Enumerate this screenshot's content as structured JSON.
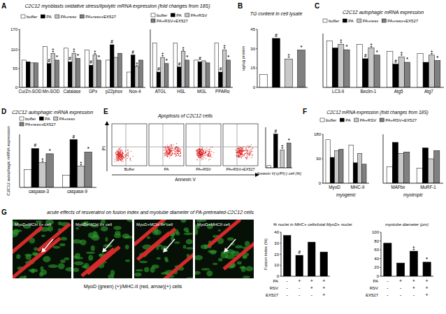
{
  "chart_data": [
    {
      "type": "bar",
      "panel": "A",
      "title": "C2C12 myoblasts oxidative stress/lipolytic mRNA expression (fold changes from 18S)",
      "legend": "top",
      "categories": [
        "Cu/Zn-SOD",
        "Mn-SOD",
        "Catalase",
        "GPx",
        "p22phox",
        "Nox-4"
      ],
      "series": [
        {
          "name": "buffer",
          "color": "#ffffff",
          "values": [
            80,
            120,
            115,
            110,
            80,
            45
          ]
        },
        {
          "name": "PA",
          "color": "#000000",
          "values": [
            75,
            70,
            75,
            65,
            125,
            95
          ]
        },
        {
          "name": "PA+resv",
          "color": "#c8c8c8",
          "values": [
            72,
            100,
            100,
            95,
            88,
            60
          ]
        },
        {
          "name": "PA+resv+EX527",
          "color": "#808080",
          "values": [
            72,
            80,
            85,
            80,
            100,
            80
          ]
        }
      ],
      "ylim": [
        0,
        170
      ],
      "yticks": [
        0,
        55,
        110,
        170
      ],
      "annotations": [
        {
          "series": 1,
          "index": 1,
          "text": "#"
        },
        {
          "series": 2,
          "index": 1,
          "text": "‡"
        },
        {
          "series": 3,
          "index": 1,
          "text": "*"
        },
        {
          "series": 1,
          "index": 2,
          "text": "#"
        },
        {
          "series": 2,
          "index": 2,
          "text": "‡"
        },
        {
          "series": 3,
          "index": 2,
          "text": "*"
        },
        {
          "series": 1,
          "index": 3,
          "text": "#"
        },
        {
          "series": 2,
          "index": 3,
          "text": "‡"
        },
        {
          "series": 3,
          "index": 3,
          "text": "*"
        },
        {
          "series": 1,
          "index": 4,
          "text": "#"
        },
        {
          "series": 1,
          "index": 5,
          "text": "#"
        },
        {
          "series": 2,
          "index": 5,
          "text": "‡"
        }
      ]
    },
    {
      "type": "bar",
      "legend": "top",
      "tick_labels": false,
      "categories": [
        "ATGL",
        "HSL",
        "MGL",
        "PPARα"
      ],
      "series": [
        {
          "name": "buffer",
          "color": "#ffffff",
          "values": [
            130,
            130,
            80,
            130
          ]
        },
        {
          "name": "PA",
          "color": "#000000",
          "values": [
            45,
            60,
            75,
            45
          ]
        },
        {
          "name": "PA+RSV",
          "color": "#c8c8c8",
          "values": [
            88,
            105,
            78,
            110
          ]
        },
        {
          "name": "PA+RSV+EX527",
          "color": "#808080",
          "values": [
            70,
            80,
            72,
            80
          ]
        }
      ],
      "ylim": [
        0,
        170
      ],
      "annotations": [
        {
          "series": 1,
          "index": 0,
          "text": "#"
        },
        {
          "series": 2,
          "index": 0,
          "text": "‡"
        },
        {
          "series": 3,
          "index": 0,
          "text": "*"
        },
        {
          "series": 1,
          "index": 1,
          "text": "#"
        },
        {
          "series": 2,
          "index": 1,
          "text": "‡"
        },
        {
          "series": 3,
          "index": 1,
          "text": "*"
        },
        {
          "series": 1,
          "index": 2,
          "text": "#"
        },
        {
          "series": 1,
          "index": 3,
          "text": "#"
        },
        {
          "series": 2,
          "index": 3,
          "text": "‡"
        },
        {
          "series": 3,
          "index": 3,
          "text": "*"
        }
      ]
    },
    {
      "type": "bar",
      "panel": "B",
      "title": "TG content in cell lysate",
      "ylabel": "ug/ug protein",
      "categories": [
        null,
        null,
        null,
        null
      ],
      "values": [
        10,
        38,
        22,
        29
      ],
      "colors": [
        "#ffffff",
        "#000000",
        "#c8c8c8",
        "#808080"
      ],
      "ylim": [
        0,
        45
      ],
      "yticks": [
        0,
        15,
        30,
        45
      ],
      "annotations": [
        {
          "index": 1,
          "text": "#"
        },
        {
          "index": 2,
          "text": "‡"
        },
        {
          "index": 3,
          "text": "*"
        }
      ]
    },
    {
      "type": "bar",
      "panel": "C",
      "title": "C2C12 autophagic mRNA expression",
      "legend": "top",
      "tick_labels": false,
      "categories": [
        "LC3-II",
        "Beclin-1",
        "Atg5",
        "Atg7"
      ],
      "series": [
        {
          "name": "buffer",
          "color": "#ffffff",
          "values": [
            130,
            120,
            100,
            95
          ]
        },
        {
          "name": "PA",
          "color": "#000000",
          "values": [
            110,
            80,
            65,
            70
          ]
        },
        {
          "name": "PA+resv",
          "color": "#c8c8c8",
          "values": [
            120,
            110,
            85,
            90
          ]
        },
        {
          "name": "PA+resv+EX527",
          "color": "#808080",
          "values": [
            105,
            90,
            70,
            75
          ]
        }
      ],
      "ylim": [
        0,
        150
      ],
      "annotations": [
        {
          "series": 2,
          "index": 0,
          "text": "‡"
        },
        {
          "series": 3,
          "index": 0,
          "text": "*"
        },
        {
          "series": 1,
          "index": 1,
          "text": "#"
        },
        {
          "series": 2,
          "index": 1,
          "text": "‡"
        },
        {
          "series": 3,
          "index": 1,
          "text": "*"
        },
        {
          "series": 1,
          "index": 2,
          "text": "#"
        },
        {
          "series": 2,
          "index": 2,
          "text": "‡"
        },
        {
          "series": 3,
          "index": 2,
          "text": "*"
        },
        {
          "series": 2,
          "index": 3,
          "text": "‡"
        },
        {
          "series": 3,
          "index": 3,
          "text": "*"
        }
      ]
    },
    {
      "type": "bar",
      "panel": "D",
      "title": "C2C12 autophagic mRNA expression",
      "ylabel": "C2C12 autophagic mRNA expression",
      "legend": "top",
      "tick_labels": false,
      "categories": [
        "caspase-3",
        "caspase-9"
      ],
      "series": [
        {
          "name": "buffer",
          "color": "#ffffff",
          "values": [
            50,
            35
          ]
        },
        {
          "name": "PA",
          "color": "#000000",
          "values": [
            110,
            135
          ]
        },
        {
          "name": "PA+resv",
          "color": "#c8c8c8",
          "values": [
            70,
            60
          ]
        },
        {
          "name": "PA+resv+EX527",
          "color": "#808080",
          "values": [
            95,
            100
          ]
        }
      ],
      "ylim": [
        0,
        150
      ],
      "annotations": [
        {
          "series": 1,
          "index": 0,
          "text": "#"
        },
        {
          "series": 2,
          "index": 0,
          "text": "‡"
        },
        {
          "series": 3,
          "index": 0,
          "text": "*"
        },
        {
          "series": 1,
          "index": 1,
          "text": "#"
        },
        {
          "series": 2,
          "index": 1,
          "text": "‡"
        },
        {
          "series": 3,
          "index": 1,
          "text": "*"
        }
      ]
    },
    {
      "type": "bar",
      "xlabel": "Annexin V(+)/PI(-) cell (%)",
      "tick_labels": false,
      "categories": [
        null,
        null,
        null,
        null
      ],
      "values": [
        5,
        75,
        40,
        55
      ],
      "colors": [
        "#ffffff",
        "#000000",
        "#c8c8c8",
        "#808080"
      ],
      "ylim": [
        0,
        90
      ],
      "annotations": [
        {
          "index": 1,
          "text": "#"
        },
        {
          "index": 2,
          "text": "‡"
        },
        {
          "index": 3,
          "text": "*"
        }
      ]
    },
    {
      "type": "bar",
      "panel": "F",
      "title": "C2C12 mRNA expression (fold changes from 18S)",
      "xlabel": "myogenic",
      "legend": "top",
      "categories": [
        "MyoD",
        "MHC-II"
      ],
      "series": [
        {
          "name": "buffer",
          "color": "#ffffff",
          "values": [
            160,
            140
          ]
        },
        {
          "name": "PA",
          "color": "#000000",
          "values": [
            95,
            75
          ]
        },
        {
          "name": "PA+RSV",
          "color": "#c8c8c8",
          "values": [
            120,
            110
          ]
        },
        {
          "name": "PA+RSV+EX527",
          "color": "#808080",
          "values": [
            125,
            70
          ]
        }
      ],
      "ylim": [
        0,
        180
      ],
      "yticks": [
        0,
        90,
        180
      ]
    },
    {
      "type": "bar",
      "xlabel": "myotropic",
      "tick_labels": false,
      "categories": [
        "MAFbx",
        "MuRF-1"
      ],
      "series": [
        {
          "color": "#ffffff",
          "values": [
            60,
            55
          ]
        },
        {
          "color": "#000000",
          "values": [
            150,
            130
          ]
        },
        {
          "color": "#c8c8c8",
          "values": [
            110,
            90
          ]
        },
        {
          "color": "#808080",
          "values": [
            115,
            120
          ]
        }
      ],
      "ylim": [
        0,
        180
      ]
    },
    {
      "type": "bar",
      "title": "% nuclei in MHC+ cells/total MyoD+ nuclei",
      "ylabel": "Fusion index (%)",
      "categories": [
        null,
        null,
        null,
        null
      ],
      "values": [
        37,
        19,
        31,
        22
      ],
      "colors": [
        "#000000",
        "#000000",
        "#000000",
        "#000000"
      ],
      "ylim": [
        0,
        40
      ],
      "yticks": [
        0,
        10,
        20,
        30,
        40
      ],
      "conditions": [
        {
          "label": "PA",
          "signs": [
            "-",
            "+",
            "+",
            "+"
          ]
        },
        {
          "label": "RSV",
          "signs": [
            "-",
            "-",
            "+",
            "+"
          ]
        },
        {
          "label": "EX527",
          "signs": [
            "-",
            "-",
            "-",
            "+"
          ]
        }
      ],
      "annotations": [
        {
          "index": 1,
          "text": "#"
        }
      ]
    },
    {
      "type": "bar",
      "title": "myotube diameter (μm)",
      "categories": [
        null,
        null,
        null,
        null
      ],
      "values": [
        75,
        30,
        57,
        32
      ],
      "colors": [
        "#000000",
        "#000000",
        "#000000",
        "#000000"
      ],
      "ylim": [
        0,
        100
      ],
      "yticks": [
        0,
        20,
        40,
        60,
        80,
        100
      ],
      "conditions": [
        {
          "label": "PA",
          "signs": [
            "-",
            "+",
            "+",
            "+"
          ]
        },
        {
          "label": "RSV",
          "signs": [
            "-",
            "-",
            "+",
            "+"
          ]
        },
        {
          "label": "EX527",
          "signs": [
            "-",
            "-",
            "-",
            "+"
          ]
        }
      ],
      "annotations": [
        {
          "index": 2,
          "text": "‡"
        },
        {
          "index": 3,
          "text": "*"
        }
      ]
    }
  ],
  "flow": {
    "panel": "E",
    "title": "Apoptosis of C2C12 cells",
    "xlabel": "Annexin V",
    "ylabel": "PI",
    "samples": [
      "Buffer",
      "PA",
      "PA+RSV",
      "PA+RSV+EX527"
    ]
  },
  "micrographs": {
    "panel": "G",
    "title": "acute effects of resveratrol on fusion index and myotube diameter of PA-pretreated-C2C12 cells",
    "labels": [
      "MyoD+MCH II+ cell",
      "MyoD+MCH II+ cell",
      "MyoD+MCH II+ cell",
      "MyoD+MHCII cell"
    ],
    "caption": "MyoD (green) (+)/MHC-II (red, arrow)(+) cells"
  }
}
